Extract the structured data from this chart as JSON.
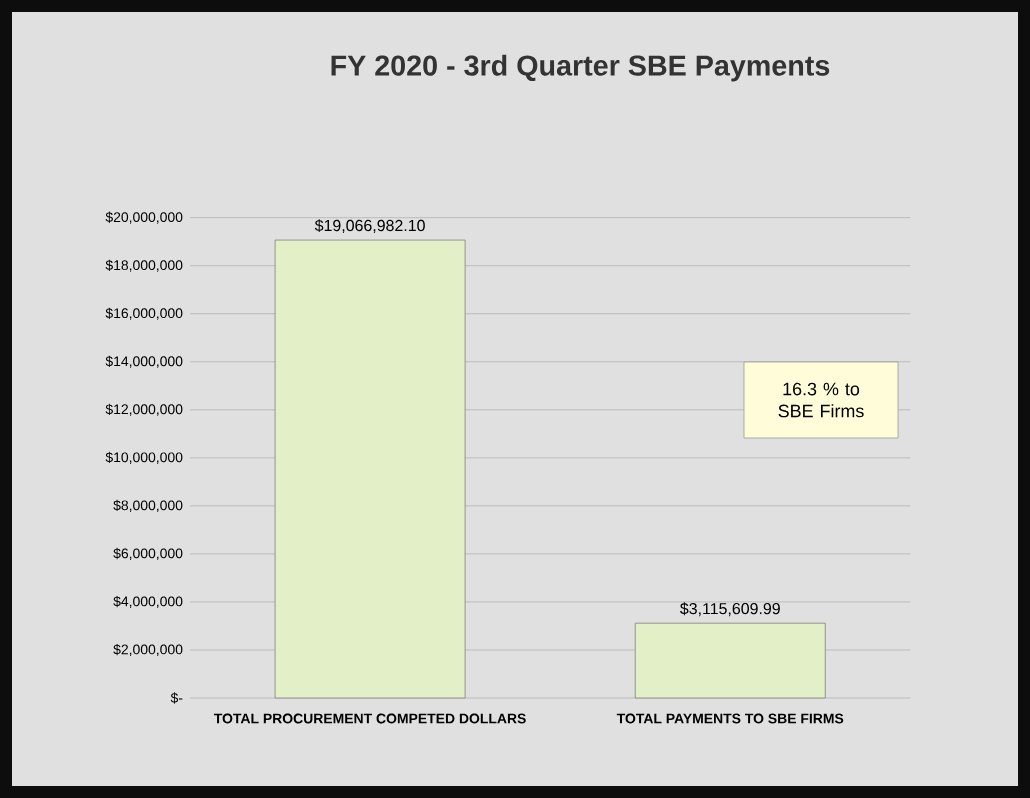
{
  "chart_data": {
    "type": "bar",
    "title": "FY 2020 - 3rd Quarter SBE Payments",
    "categories": [
      "TOTAL PROCUREMENT COMPETED DOLLARS",
      "TOTAL PAYMENTS TO SBE FIRMS"
    ],
    "values": [
      19066982.1,
      3115609.99
    ],
    "value_labels": [
      "$19,066,982.10",
      "$3,115,609.99"
    ],
    "color": "#e3efc6",
    "ylim": [
      0,
      20000000
    ],
    "yticks": [
      {
        "value": 0,
        "label": "$-"
      },
      {
        "value": 2000000,
        "label": "$2,000,000"
      },
      {
        "value": 4000000,
        "label": "$4,000,000"
      },
      {
        "value": 6000000,
        "label": "$6,000,000"
      },
      {
        "value": 8000000,
        "label": "$8,000,000"
      },
      {
        "value": 10000000,
        "label": "$10,000,000"
      },
      {
        "value": 12000000,
        "label": "$12,000,000"
      },
      {
        "value": 14000000,
        "label": "$14,000,000"
      },
      {
        "value": 16000000,
        "label": "$16,000,000"
      },
      {
        "value": 18000000,
        "label": "$18,000,000"
      },
      {
        "value": 20000000,
        "label": "$20,000,000"
      }
    ],
    "grid": true,
    "annotations": [
      "16.3 % to SBE Firms"
    ]
  }
}
